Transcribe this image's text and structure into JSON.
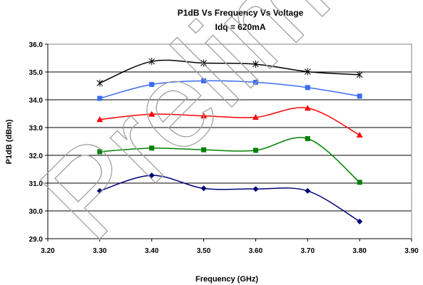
{
  "watermark": "Prelim",
  "chart_data": {
    "type": "line",
    "title": "P1dB Vs Frequency Vs Voltage",
    "subtitle": "Idq = 620mA",
    "xlabel": "Frequency (GHz)",
    "ylabel": "P1dB (dBm)",
    "xlim": [
      3.2,
      3.9
    ],
    "ylim": [
      29.0,
      36.0
    ],
    "x_ticks": [
      "3.20",
      "3.30",
      "3.40",
      "3.50",
      "3.60",
      "3.70",
      "3.80",
      "3.90"
    ],
    "y_ticks": [
      "29.0",
      "30.0",
      "31.0",
      "32.0",
      "33.0",
      "34.0",
      "35.0",
      "36.0"
    ],
    "grid": "horizontal",
    "legend": "none",
    "x": [
      3.3,
      3.4,
      3.5,
      3.6,
      3.7,
      3.8
    ],
    "series": [
      {
        "marker": "star",
        "color": "#000000",
        "values": [
          34.6,
          35.38,
          35.32,
          35.28,
          35.01,
          34.9
        ]
      },
      {
        "marker": "square",
        "color": "#3b6cf0",
        "values": [
          34.05,
          34.55,
          34.68,
          34.63,
          34.44,
          34.13
        ]
      },
      {
        "marker": "triangle",
        "color": "#ff0000",
        "values": [
          33.29,
          33.48,
          33.42,
          33.37,
          33.7,
          32.73
        ]
      },
      {
        "marker": "square",
        "color": "#008000",
        "values": [
          32.13,
          32.26,
          32.2,
          32.18,
          32.6,
          31.03
        ]
      },
      {
        "marker": "diamond",
        "color": "#00007a",
        "values": [
          30.72,
          31.28,
          30.81,
          30.79,
          30.72,
          29.62
        ]
      }
    ]
  }
}
